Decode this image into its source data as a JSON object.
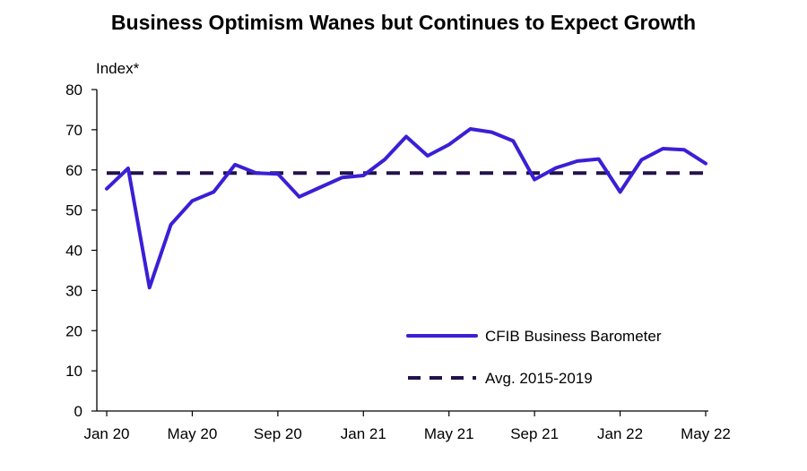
{
  "chart_data": {
    "type": "line",
    "title": "Business Optimism Wanes but Continues  to Expect Growth",
    "ylabel": "Index*",
    "xlabel": "",
    "ylim": [
      0,
      80
    ],
    "yticks": [
      0,
      10,
      20,
      30,
      40,
      50,
      60,
      70,
      80
    ],
    "grid": false,
    "legend_position": "bottom-right",
    "x": [
      "Jan 20",
      "Feb 20",
      "Mar 20",
      "Apr 20",
      "May 20",
      "Jun 20",
      "Jul 20",
      "Aug 20",
      "Sep 20",
      "Oct 20",
      "Nov 20",
      "Dec 20",
      "Jan 21",
      "Feb 21",
      "Mar 21",
      "Apr 21",
      "May 21",
      "Jun 21",
      "Jul 21",
      "Aug 21",
      "Sep 21",
      "Oct 21",
      "Nov 21",
      "Dec 21",
      "Jan 22",
      "Feb 22",
      "Mar 22",
      "Apr 22",
      "May 22"
    ],
    "x_tick_labels": [
      "Jan 20",
      "May 20",
      "Sep 20",
      "Jan 21",
      "May 21",
      "Sep 21",
      "Jan 22",
      "May 22"
    ],
    "series": [
      {
        "name": "CFIB Business Barometer",
        "color": "#3a1fd6",
        "style": "solid",
        "values": [
          55.3,
          60.4,
          30.7,
          46.4,
          52.3,
          54.5,
          61.3,
          59.2,
          59.0,
          53.3,
          55.7,
          58.1,
          58.6,
          62.6,
          68.3,
          63.5,
          66.3,
          70.2,
          69.4,
          67.2,
          57.6,
          60.5,
          62.2,
          62.7,
          54.5,
          62.5,
          65.3,
          65.0,
          61.6
        ]
      },
      {
        "name": "Avg. 2015-2019",
        "color": "#24124a",
        "style": "dashed",
        "values": [
          59.2,
          59.2,
          59.2,
          59.2,
          59.2,
          59.2,
          59.2,
          59.2,
          59.2,
          59.2,
          59.2,
          59.2,
          59.2,
          59.2,
          59.2,
          59.2,
          59.2,
          59.2,
          59.2,
          59.2,
          59.2,
          59.2,
          59.2,
          59.2,
          59.2,
          59.2,
          59.2,
          59.2,
          59.2
        ]
      }
    ]
  }
}
